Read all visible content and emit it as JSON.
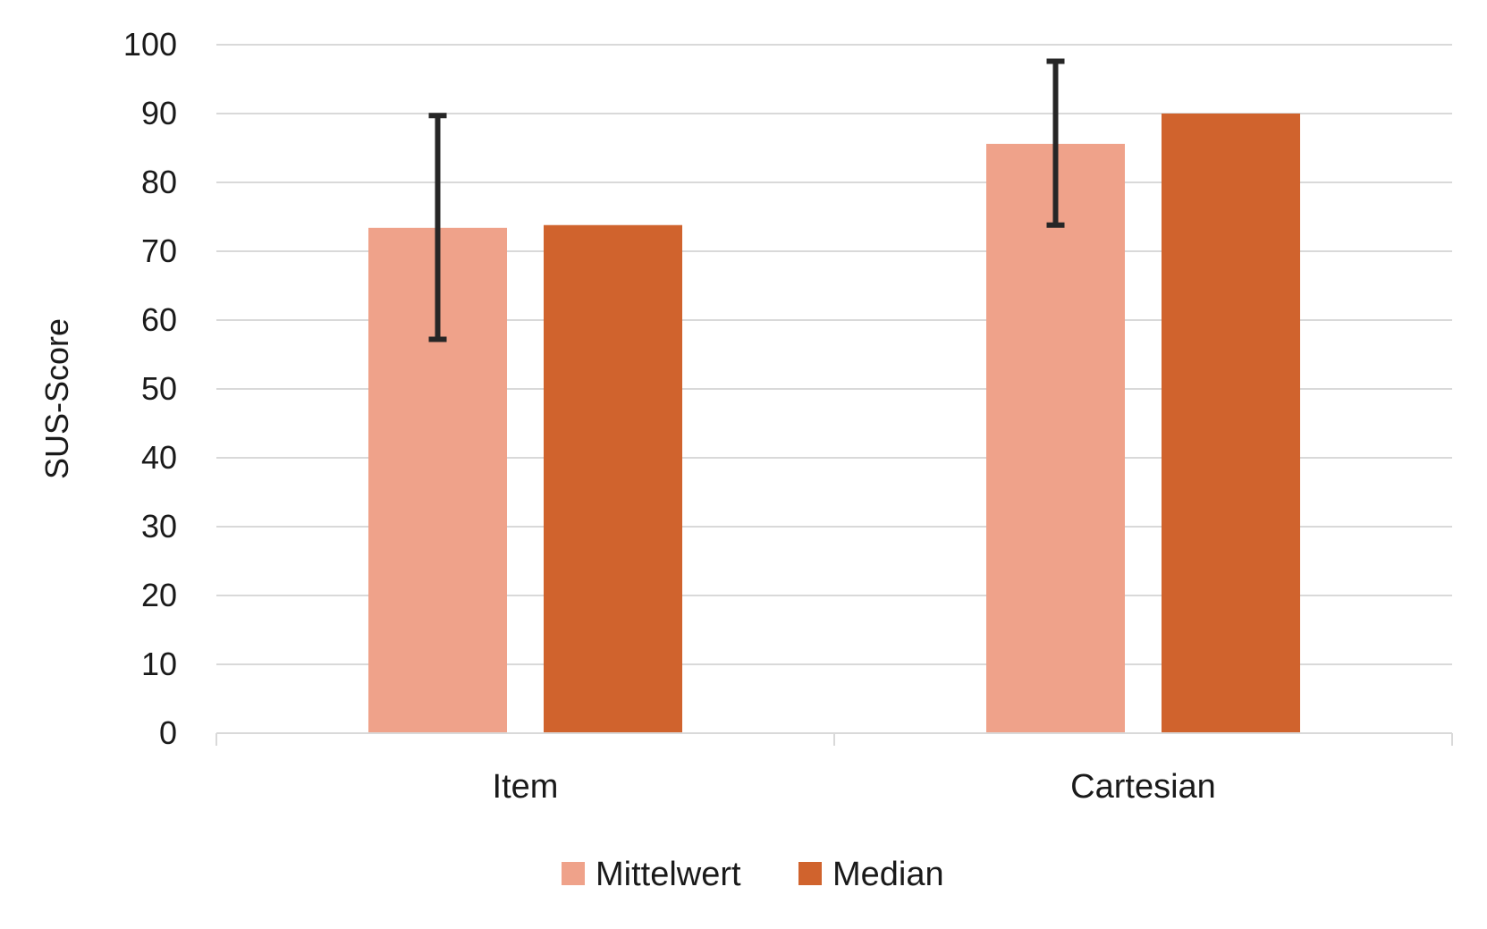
{
  "chart_data": {
    "type": "bar",
    "categories": [
      "Item",
      "Cartesian"
    ],
    "series": [
      {
        "name": "Mittelwert",
        "values": [
          73.4,
          85.6
        ],
        "error_low": [
          57.2,
          73.8
        ],
        "error_high": [
          89.7,
          97.6
        ],
        "color": "#EFA28A"
      },
      {
        "name": "Median",
        "values": [
          73.8,
          90
        ],
        "color": "#D0632D"
      }
    ],
    "ylabel": "SUS-Score",
    "ylim": [
      0,
      100
    ],
    "yticks": [
      0,
      10,
      20,
      30,
      40,
      50,
      60,
      70,
      80,
      90,
      100
    ],
    "grid": true,
    "legend": "bottom"
  }
}
